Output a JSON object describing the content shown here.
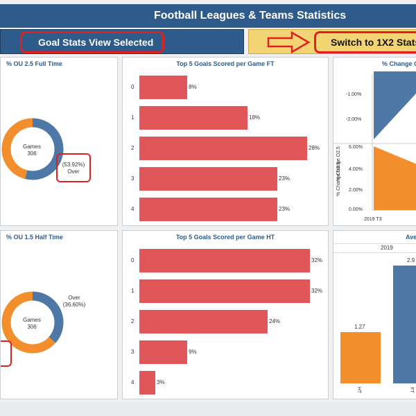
{
  "header": {
    "title": "Football Leagues & Teams Statistics"
  },
  "buttons": {
    "goal_stats": "Goal Stats View Selected",
    "switch_1x2": "Switch to 1X2 Stats"
  },
  "panels": {
    "ou25": {
      "title": "% OU 2.5 Full Time",
      "center_label": "Games",
      "center_value": "306",
      "over_pct": "(53.92%)",
      "over_label": "Over",
      "over_fraction": 0.5392
    },
    "ou15": {
      "title": "% OU 1.5 Half Time",
      "center_label": "Games",
      "center_value": "306",
      "over_label": "Over",
      "over_pct": "(36.60%)",
      "over_fraction": 0.366
    },
    "top5ft": {
      "title": "Top 5 Goals Scored per Game FT",
      "bars": [
        {
          "cat": "0",
          "label": "8%",
          "value": 8
        },
        {
          "cat": "1",
          "label": "18%",
          "value": 18
        },
        {
          "cat": "2",
          "label": "28%",
          "value": 28
        },
        {
          "cat": "3",
          "label": "23%",
          "value": 23
        },
        {
          "cat": "4",
          "label": "23%",
          "value": 23
        }
      ]
    },
    "top5ht": {
      "title": "Top 5 Goals Scored per Game HT",
      "bars": [
        {
          "cat": "0",
          "label": "32%",
          "value": 32
        },
        {
          "cat": "1",
          "label": "32%",
          "value": 32
        },
        {
          "cat": "2",
          "label": "24%",
          "value": 24
        },
        {
          "cat": "3",
          "label": "9%",
          "value": 9
        },
        {
          "cat": "4",
          "label": "3%",
          "value": 3
        }
      ]
    },
    "change": {
      "title": "% Change O",
      "top_axis_label": "% Change O2.5",
      "top_ticks": [
        "-1.00%",
        "-2.00%"
      ],
      "bottom_axis_label": "% Change U2.5",
      "bottom_ticks": [
        "6.00%",
        "4.00%",
        "2.00%",
        "0.00%"
      ],
      "x_label": "2019 T3"
    },
    "avg": {
      "title": "Ave",
      "year": "2019",
      "bars": [
        {
          "label": "1.27",
          "value": 1.27,
          "cat": "HT"
        },
        {
          "label": "2.9",
          "value": 2.9,
          "cat": "FT"
        }
      ]
    }
  },
  "colors": {
    "blue": "#4e79a7",
    "orange": "#f28e2b",
    "red": "#e15759",
    "header": "#2e5b8a",
    "yellow": "#f2d472"
  }
}
